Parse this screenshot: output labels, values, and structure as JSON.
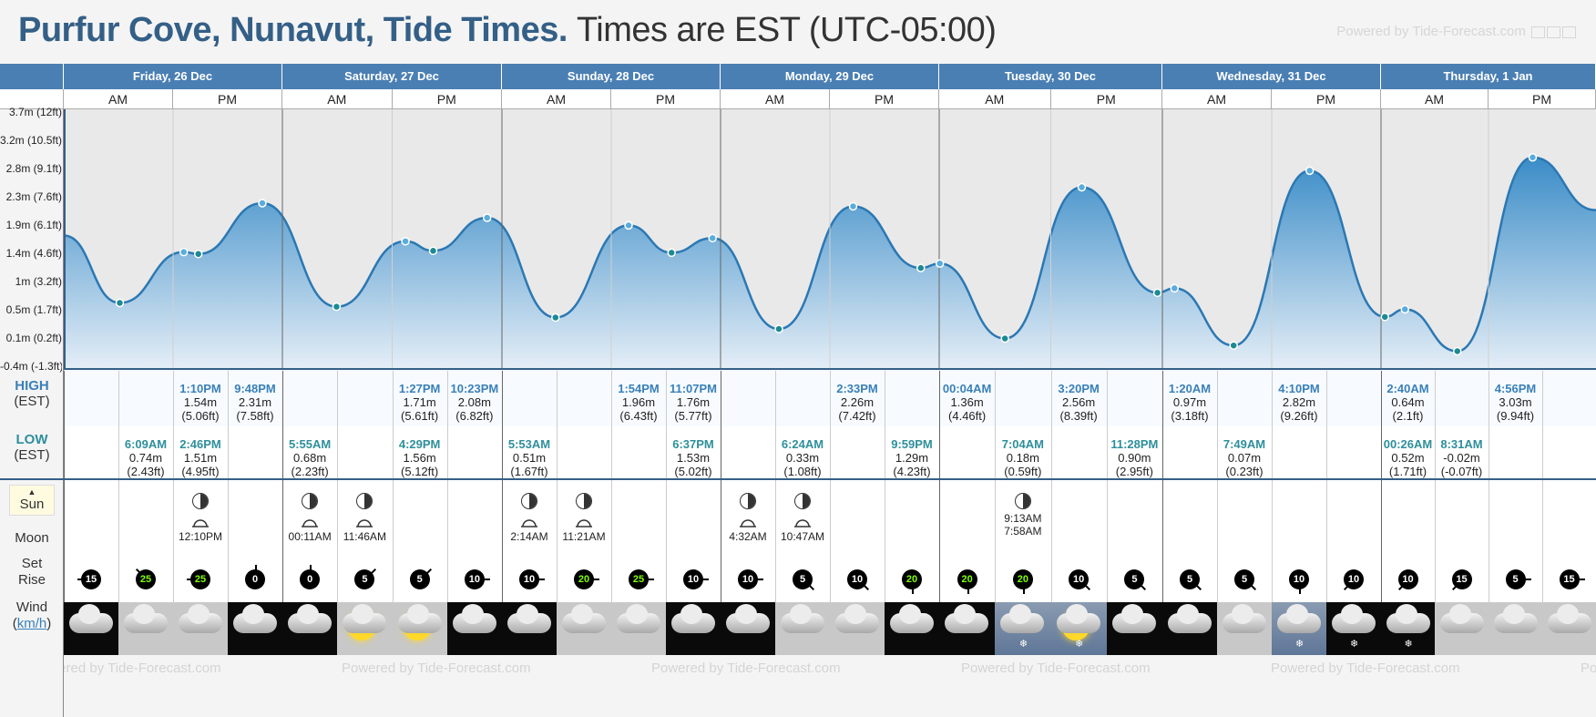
{
  "header": {
    "title": "Purfur Cove, Nunavut, Tide Times.",
    "subtitle": "Times are EST (UTC-05:00)",
    "powered_by": "Powered by Tide-Forecast.com"
  },
  "left_labels": {
    "high": "HIGH",
    "high_tz": "(EST)",
    "low": "LOW",
    "low_tz": "(EST)",
    "sun": "Sun",
    "moon": "Moon",
    "set": "Set",
    "rise": "Rise",
    "wind": "Wind",
    "wind_unit": "km/h"
  },
  "days": [
    "Friday, 26 Dec",
    "Saturday, 27 Dec",
    "Sunday, 28 Dec",
    "Monday, 29 Dec",
    "Tuesday, 30 Dec",
    "Wednesday, 31 Dec",
    "Thursday, 1 Jan"
  ],
  "ampm": [
    "AM",
    "PM"
  ],
  "chart_data": {
    "type": "area",
    "yticks": [
      "3.7m (12ft)",
      "3.2m (10.5ft)",
      "2.8m (9.1ft)",
      "2.3m (7.6ft)",
      "1.9m (6.1ft)",
      "1.4m (4.6ft)",
      "1m (3.2ft)",
      "0.5m (1.7ft)",
      "0.1m (0.2ft)",
      "-0.4m (-1.3ft)"
    ],
    "ylim": [
      -0.4,
      3.7
    ],
    "points": [
      {
        "day": 0,
        "hour": 0,
        "m": 1.8
      },
      {
        "day": 0,
        "hour": 6.15,
        "m": 0.74
      },
      {
        "day": 0,
        "hour": 13.17,
        "m": 1.54
      },
      {
        "day": 0,
        "hour": 14.77,
        "m": 1.51
      },
      {
        "day": 0,
        "hour": 21.8,
        "m": 2.31
      },
      {
        "day": 1,
        "hour": 5.92,
        "m": 0.68
      },
      {
        "day": 1,
        "hour": 13.45,
        "m": 1.71
      },
      {
        "day": 1,
        "hour": 16.48,
        "m": 1.56
      },
      {
        "day": 1,
        "hour": 22.38,
        "m": 2.08
      },
      {
        "day": 2,
        "hour": 5.88,
        "m": 0.51
      },
      {
        "day": 2,
        "hour": 13.9,
        "m": 1.96
      },
      {
        "day": 2,
        "hour": 18.62,
        "m": 1.53
      },
      {
        "day": 2,
        "hour": 23.12,
        "m": 1.76
      },
      {
        "day": 3,
        "hour": 6.4,
        "m": 0.33
      },
      {
        "day": 3,
        "hour": 14.55,
        "m": 2.26
      },
      {
        "day": 3,
        "hour": 21.98,
        "m": 1.29
      },
      {
        "day": 4,
        "hour": 0.07,
        "m": 1.36
      },
      {
        "day": 4,
        "hour": 7.07,
        "m": 0.18
      },
      {
        "day": 4,
        "hour": 15.33,
        "m": 2.56
      },
      {
        "day": 4,
        "hour": 23.47,
        "m": 0.9
      },
      {
        "day": 5,
        "hour": 1.33,
        "m": 0.97
      },
      {
        "day": 5,
        "hour": 7.82,
        "m": 0.07
      },
      {
        "day": 5,
        "hour": 16.17,
        "m": 2.82
      },
      {
        "day": 6,
        "hour": 0.43,
        "m": 0.52
      },
      {
        "day": 6,
        "hour": 2.67,
        "m": 0.64
      },
      {
        "day": 6,
        "hour": 8.52,
        "m": -0.02
      },
      {
        "day": 6,
        "hour": 16.93,
        "m": 3.03
      },
      {
        "day": 6,
        "hour": 24,
        "m": 2.2
      }
    ]
  },
  "highs": [
    {
      "day": 0,
      "slot": 2,
      "time": "1:10PM",
      "m": "1.54m",
      "ft": "(5.06ft)"
    },
    {
      "day": 0,
      "slot": 3,
      "time": "9:48PM",
      "m": "2.31m",
      "ft": "(7.58ft)"
    },
    {
      "day": 1,
      "slot": 2,
      "time": "1:27PM",
      "m": "1.71m",
      "ft": "(5.61ft)"
    },
    {
      "day": 1,
      "slot": 3,
      "time": "10:23PM",
      "m": "2.08m",
      "ft": "(6.82ft)"
    },
    {
      "day": 2,
      "slot": 2,
      "time": "1:54PM",
      "m": "1.96m",
      "ft": "(6.43ft)"
    },
    {
      "day": 2,
      "slot": 3,
      "time": "11:07PM",
      "m": "1.76m",
      "ft": "(5.77ft)"
    },
    {
      "day": 3,
      "slot": 2,
      "time": "2:33PM",
      "m": "2.26m",
      "ft": "(7.42ft)"
    },
    {
      "day": 4,
      "slot": 0,
      "time": "00:04AM",
      "m": "1.36m",
      "ft": "(4.46ft)"
    },
    {
      "day": 4,
      "slot": 2,
      "time": "3:20PM",
      "m": "2.56m",
      "ft": "(8.39ft)"
    },
    {
      "day": 5,
      "slot": 0,
      "time": "1:20AM",
      "m": "0.97m",
      "ft": "(3.18ft)"
    },
    {
      "day": 5,
      "slot": 2,
      "time": "4:10PM",
      "m": "2.82m",
      "ft": "(9.26ft)"
    },
    {
      "day": 6,
      "slot": 0,
      "time": "2:40AM",
      "m": "0.64m",
      "ft": "(2.1ft)"
    },
    {
      "day": 6,
      "slot": 2,
      "time": "4:56PM",
      "m": "3.03m",
      "ft": "(9.94ft)"
    }
  ],
  "lows": [
    {
      "day": 0,
      "slot": 1,
      "time": "6:09AM",
      "m": "0.74m",
      "ft": "(2.43ft)"
    },
    {
      "day": 0,
      "slot": 2,
      "time": "2:46PM",
      "m": "1.51m",
      "ft": "(4.95ft)"
    },
    {
      "day": 1,
      "slot": 0,
      "time": "5:55AM",
      "m": "0.68m",
      "ft": "(2.23ft)"
    },
    {
      "day": 1,
      "slot": 2,
      "time": "4:29PM",
      "m": "1.56m",
      "ft": "(5.12ft)"
    },
    {
      "day": 2,
      "slot": 0,
      "time": "5:53AM",
      "m": "0.51m",
      "ft": "(1.67ft)"
    },
    {
      "day": 2,
      "slot": 3,
      "time": "6:37PM",
      "m": "1.53m",
      "ft": "(5.02ft)"
    },
    {
      "day": 3,
      "slot": 1,
      "time": "6:24AM",
      "m": "0.33m",
      "ft": "(1.08ft)"
    },
    {
      "day": 3,
      "slot": 3,
      "time": "9:59PM",
      "m": "1.29m",
      "ft": "(4.23ft)"
    },
    {
      "day": 4,
      "slot": 1,
      "time": "7:04AM",
      "m": "0.18m",
      "ft": "(0.59ft)"
    },
    {
      "day": 4,
      "slot": 3,
      "time": "11:28PM",
      "m": "0.90m",
      "ft": "(2.95ft)"
    },
    {
      "day": 5,
      "slot": 1,
      "time": "7:49AM",
      "m": "0.07m",
      "ft": "(0.23ft)"
    },
    {
      "day": 6,
      "slot": 0,
      "time": "00:26AM",
      "m": "0.52m",
      "ft": "(1.71ft)"
    },
    {
      "day": 6,
      "slot": 1,
      "time": "8:31AM",
      "m": "-0.02m",
      "ft": "(-0.07ft)"
    }
  ],
  "moon": [
    {
      "day": 0,
      "slot": 2,
      "phase": "first-quarter",
      "rise": "12:10PM"
    },
    {
      "day": 1,
      "slot": 0,
      "phase": "first-quarter",
      "rise": "00:11AM"
    },
    {
      "day": 1,
      "slot": 1,
      "phase": "first-quarter",
      "rise": "11:46AM"
    },
    {
      "day": 2,
      "slot": 0,
      "phase": "first-quarter",
      "rise": "2:14AM"
    },
    {
      "day": 2,
      "slot": 1,
      "phase": "first-quarter",
      "rise": "11:21AM"
    },
    {
      "day": 3,
      "slot": 0,
      "phase": "first-quarter",
      "rise": "4:32AM"
    },
    {
      "day": 3,
      "slot": 1,
      "phase": "first-quarter",
      "rise": "10:47AM"
    },
    {
      "day": 4,
      "slot": 1,
      "phase": "first-quarter",
      "rise": "7:58AM",
      "set": "9:13AM"
    }
  ],
  "wind": [
    {
      "v": "15",
      "dir": 270,
      "green": false
    },
    {
      "v": "25",
      "dir": 315,
      "green": true
    },
    {
      "v": "25",
      "dir": 270,
      "green": true
    },
    {
      "v": "0",
      "dir": 0,
      "green": false
    },
    {
      "v": "0",
      "dir": 0,
      "green": false
    },
    {
      "v": "5",
      "dir": 45,
      "green": false
    },
    {
      "v": "5",
      "dir": 45,
      "green": false
    },
    {
      "v": "10",
      "dir": 90,
      "green": false
    },
    {
      "v": "10",
      "dir": 90,
      "green": false
    },
    {
      "v": "20",
      "dir": 90,
      "green": true
    },
    {
      "v": "25",
      "dir": 90,
      "green": true
    },
    {
      "v": "10",
      "dir": 90,
      "green": false
    },
    {
      "v": "10",
      "dir": 90,
      "green": false
    },
    {
      "v": "5",
      "dir": 135,
      "green": false
    },
    {
      "v": "10",
      "dir": 135,
      "green": false
    },
    {
      "v": "20",
      "dir": 180,
      "green": true
    },
    {
      "v": "20",
      "dir": 180,
      "green": true
    },
    {
      "v": "20",
      "dir": 180,
      "green": true
    },
    {
      "v": "10",
      "dir": 135,
      "green": false
    },
    {
      "v": "5",
      "dir": 135,
      "green": false
    },
    {
      "v": "5",
      "dir": 135,
      "green": false
    },
    {
      "v": "5",
      "dir": 135,
      "green": false
    },
    {
      "v": "10",
      "dir": 180,
      "green": false
    },
    {
      "v": "10",
      "dir": 225,
      "green": false
    },
    {
      "v": "10",
      "dir": 225,
      "green": false
    },
    {
      "v": "15",
      "dir": 225,
      "green": false
    },
    {
      "v": "5",
      "dir": 90,
      "green": false
    },
    {
      "v": "15",
      "dir": 90,
      "green": false
    }
  ],
  "weather": [
    "night",
    "day",
    "day",
    "night",
    "night",
    "sun",
    "sun",
    "night",
    "night",
    "day",
    "day",
    "night",
    "night",
    "day",
    "day",
    "night",
    "night",
    "snow",
    "sunsnow",
    "night",
    "night",
    "day",
    "snow",
    "snownight",
    "snownight",
    "day",
    "day",
    "day"
  ]
}
